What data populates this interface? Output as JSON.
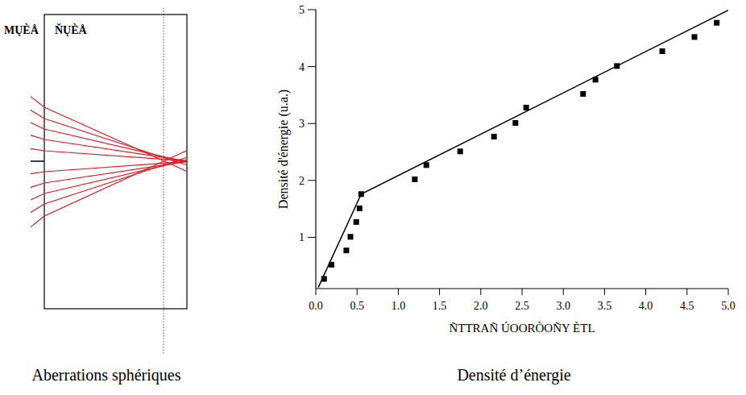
{
  "diagram": {
    "labels": [
      "MŲÈÅ",
      "ŇŲÈÅ"
    ],
    "caption": "Aberrations sphériques"
  },
  "chart_data": {
    "type": "scatter",
    "title": "Densité d’énergie",
    "xlabel": "ÑTTRAÑ ÚOORÒOÑY ÈTL",
    "ylabel": "Densité d'énergie (u.a.)",
    "xlim": [
      0,
      5
    ],
    "ylim": [
      0.1,
      5
    ],
    "xticks": [
      {
        "value": 0,
        "label": "0.0"
      },
      0.5,
      {
        "value": 1,
        "label": "1.0"
      },
      1.5,
      {
        "value": 2,
        "label": "2.0"
      },
      2.5,
      {
        "value": 3,
        "label": "3.0"
      },
      3.5,
      {
        "value": 4,
        "label": "4.0"
      },
      4.5,
      {
        "value": 5,
        "label": "5.0"
      }
    ],
    "yticks": [
      1,
      2,
      3,
      4,
      5
    ],
    "grid": false,
    "series": [
      {
        "type": "scatter",
        "marker": "square",
        "color": "#000000",
        "x": [
          0.1,
          0.19,
          0.37,
          0.42,
          0.49,
          0.53,
          0.55,
          1.2,
          1.34,
          1.75,
          2.16,
          2.42,
          2.55,
          3.24,
          3.39,
          3.65,
          4.2,
          4.59,
          4.86
        ],
        "values": [
          0.27,
          0.52,
          0.77,
          1.01,
          1.27,
          1.51,
          1.76,
          2.02,
          2.27,
          2.51,
          2.77,
          3.01,
          3.28,
          3.52,
          3.77,
          4.01,
          4.27,
          4.52,
          4.77
        ]
      },
      {
        "type": "line",
        "line_style": "solid",
        "color": "#000000",
        "x": [
          0.03,
          0.55,
          5.0
        ],
        "values": [
          0.12,
          1.76,
          4.99
        ]
      }
    ]
  }
}
